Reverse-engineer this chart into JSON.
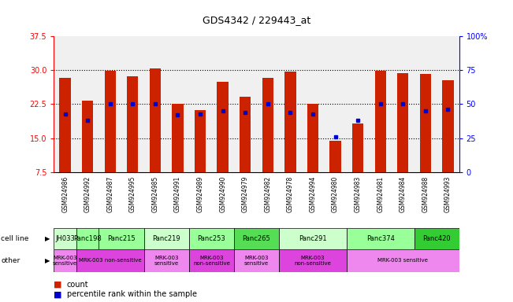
{
  "title": "GDS4342 / 229443_at",
  "samples": [
    "GSM924986",
    "GSM924992",
    "GSM924987",
    "GSM924995",
    "GSM924985",
    "GSM924991",
    "GSM924989",
    "GSM924990",
    "GSM924979",
    "GSM924982",
    "GSM924978",
    "GSM924994",
    "GSM924980",
    "GSM924983",
    "GSM924981",
    "GSM924984",
    "GSM924988",
    "GSM924993"
  ],
  "counts": [
    28.3,
    23.2,
    29.8,
    28.7,
    30.4,
    22.5,
    21.2,
    27.5,
    24.2,
    28.3,
    29.7,
    22.6,
    14.4,
    18.2,
    29.8,
    29.3,
    29.2,
    27.8
  ],
  "percentiles": [
    43,
    38,
    50,
    50,
    50,
    42,
    43,
    45,
    44,
    50,
    44,
    43,
    26,
    38,
    50,
    50,
    45,
    46
  ],
  "ymin": 7.5,
  "ymax": 37.5,
  "yticks_left": [
    7.5,
    15.0,
    22.5,
    30.0,
    37.5
  ],
  "yticks_right": [
    0,
    25,
    50,
    75,
    100
  ],
  "bar_color": "#cc2200",
  "percentile_color": "#0000cc",
  "cell_lines": [
    {
      "name": "JH033",
      "start": 0,
      "end": 1,
      "color": "#ccffcc"
    },
    {
      "name": "Panc198",
      "start": 1,
      "end": 2,
      "color": "#99ff99"
    },
    {
      "name": "Panc215",
      "start": 2,
      "end": 4,
      "color": "#99ff99"
    },
    {
      "name": "Panc219",
      "start": 4,
      "end": 6,
      "color": "#ccffcc"
    },
    {
      "name": "Panc253",
      "start": 6,
      "end": 8,
      "color": "#99ff99"
    },
    {
      "name": "Panc265",
      "start": 8,
      "end": 10,
      "color": "#55dd55"
    },
    {
      "name": "Panc291",
      "start": 10,
      "end": 13,
      "color": "#ccffcc"
    },
    {
      "name": "Panc374",
      "start": 13,
      "end": 16,
      "color": "#99ff99"
    },
    {
      "name": "Panc420",
      "start": 16,
      "end": 18,
      "color": "#33cc33"
    }
  ],
  "other_annotations": [
    {
      "label": "MRK-003\nsensitive",
      "start": 0,
      "end": 1,
      "color": "#ee88ee"
    },
    {
      "label": "MRK-003 non-sensitive",
      "start": 1,
      "end": 4,
      "color": "#dd44dd"
    },
    {
      "label": "MRK-003\nsensitive",
      "start": 4,
      "end": 6,
      "color": "#ee88ee"
    },
    {
      "label": "MRK-003\nnon-sensitive",
      "start": 6,
      "end": 8,
      "color": "#dd44dd"
    },
    {
      "label": "MRK-003\nsensitive",
      "start": 8,
      "end": 10,
      "color": "#ee88ee"
    },
    {
      "label": "MRK-003\nnon-sensitive",
      "start": 10,
      "end": 13,
      "color": "#dd44dd"
    },
    {
      "label": "MRK-003 sensitive",
      "start": 13,
      "end": 18,
      "color": "#ee88ee"
    }
  ],
  "grid_yticks": [
    15.0,
    22.5,
    30.0
  ],
  "background_color": "#f0f0f0",
  "title_fontsize": 9
}
